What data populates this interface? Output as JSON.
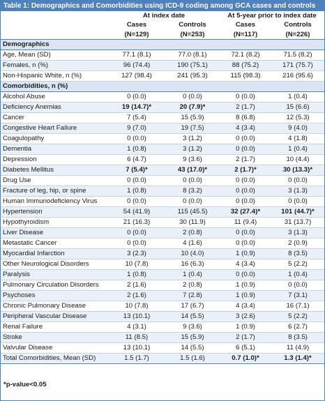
{
  "title": "Table 1: Demographics and Comorbidities using ICD-9 coding among GCA cases and controls",
  "header": {
    "group1": "At index date",
    "group2": "At 5-year prior to index date",
    "cols": [
      "Cases\n(N=129)",
      "Controls\n(N=253)",
      "Cases\n(N=117)",
      "Controls\n(N=226)"
    ],
    "col_names": [
      "Cases",
      "Controls",
      "Cases",
      "Controls"
    ],
    "col_ns": [
      "(N=129)",
      "(N=253)",
      "(N=117)",
      "(N=226)"
    ]
  },
  "sections": [
    {
      "label": "Demographics",
      "rows": [
        [
          "Age, Mean (SD)",
          "77.1 (8.1)",
          "77.0 (8.1)",
          "72.1 (8.2)",
          "71.5 (8.2)"
        ],
        [
          "Females, n (%)",
          "96 (74.4)",
          "190 (75.1)",
          "88 (75.2)",
          "171 (75.7)"
        ],
        [
          "Non-Hispanic White, n (%)",
          "127 (98.4)",
          "241 (95.3)",
          "115 (98.3)",
          "216 (95.6)"
        ]
      ]
    },
    {
      "label": "Comorbidities, n (%)",
      "rows": [
        [
          "Alcohol Abuse",
          "0 (0.0)",
          "0 (0.0)",
          "0 (0.0)",
          "1 (0.4)"
        ],
        [
          "Deficiency Anemias",
          "19 (14.7)*",
          "20 (7.9)*",
          "2 (1.7)",
          "15 (6.6)"
        ],
        [
          "Cancer",
          "7 (5.4)",
          "15 (5.9)",
          "8 (6.8)",
          "12 (5.3)"
        ],
        [
          "Congestive Heart Failure",
          "9 (7.0)",
          "19 (7.5)",
          "4 (3.4)",
          "9 (4.0)"
        ],
        [
          "Coagulopathy",
          "0 (0.0)",
          "3 (1.2)",
          "0 (0.0)",
          "4 (1.8)"
        ],
        [
          "Dementia",
          "1 (0.8)",
          "3 (1.2)",
          "0 (0.0)",
          "1 (0.4)"
        ],
        [
          "Depression",
          "6 (4.7)",
          "9 (3.6)",
          "2 (1.7)",
          "10 (4.4)"
        ],
        [
          "Diabetes Mellitus",
          "7 (5.4)*",
          "43 (17.0)*",
          "2 (1.7)*",
          "30 (13.3)*"
        ],
        [
          "Drug Use",
          "0 (0.0)",
          "0 (0.0)",
          "0 (0.0)",
          "0 (0.0)"
        ],
        [
          "Fracture of leg, hip, or spine",
          "1 (0.8)",
          "8 (3.2)",
          "0 (0.0)",
          "3 (1.3)"
        ],
        [
          "Human Immunodeficiency Virus",
          "0 (0.0)",
          "0 (0.0)",
          "0 (0.0)",
          "0 (0.0)"
        ],
        [
          "Hypertension",
          "54 (41.9)",
          "115 (45.5)",
          "32 (27.4)*",
          "101 (44.7)*"
        ],
        [
          "Hypothyroidism",
          "21 (16.3)",
          "30 (11.9)",
          "11 (9.4)",
          "31 (13.7)"
        ],
        [
          "Liver Disease",
          "0 (0.0)",
          "2 (0.8)",
          "0 (0.0)",
          "3 (1.3)"
        ],
        [
          "Metastatic Cancer",
          "0 (0.0)",
          "4 (1.6)",
          "0 (0.0)",
          "2 (0.9)"
        ],
        [
          "Myocardial Infarction",
          "3 (2.3)",
          "10 (4.0)",
          "1 (0.9)",
          "8 (3.5)"
        ],
        [
          "Other Neurological Disorders",
          "10 (7.8)",
          "16 (6.3)",
          "4 (3.4)",
          "5 (2.2)"
        ],
        [
          "Paralysis",
          "1 (0.8)",
          "1 (0.4)",
          "0 (0.0)",
          "1 (0.4)"
        ],
        [
          "Pulmonary Circulation Disorders",
          "2 (1.6)",
          "2 (0.8)",
          "1 (0.9)",
          "0 (0.0)"
        ],
        [
          "Psychoses",
          "2 (1.6)",
          "7 (2.8)",
          "1 (0.9)",
          "7 (3.1)"
        ],
        [
          "Chronic Pulmonary Disease",
          "10 (7.8)",
          "17 (6.7)",
          "4 (3.4)",
          "16 (7.1)"
        ],
        [
          "Peripheral Vascular Disease",
          "13 (10.1)",
          "14 (5.5)",
          "3 (2.6)",
          "5 (2.2)"
        ],
        [
          "Renal Failure",
          "4 (3.1)",
          "9 (3.6)",
          "1 (0.9)",
          "6 (2.7)"
        ],
        [
          "Stroke",
          "11 (8.5)",
          "15 (5.9)",
          "2 (1.7)",
          "8 (3.5)"
        ],
        [
          "Valvular Disease",
          "13 (10.1)",
          "14 (5.5)",
          "6 (5.1)",
          "11 (4.9)"
        ],
        [
          "Total Comorbidities, Mean (SD)",
          "1.5 (1.7)",
          "1.5 (1.6)",
          "0.7 (1.0)*",
          "1.3 (1.4)*"
        ]
      ]
    }
  ],
  "footnote": "*p-value<0.05",
  "colors": {
    "accent": "#4f81bd",
    "shade": "#dbe5f1",
    "alt_row": "#eaf0f8"
  }
}
